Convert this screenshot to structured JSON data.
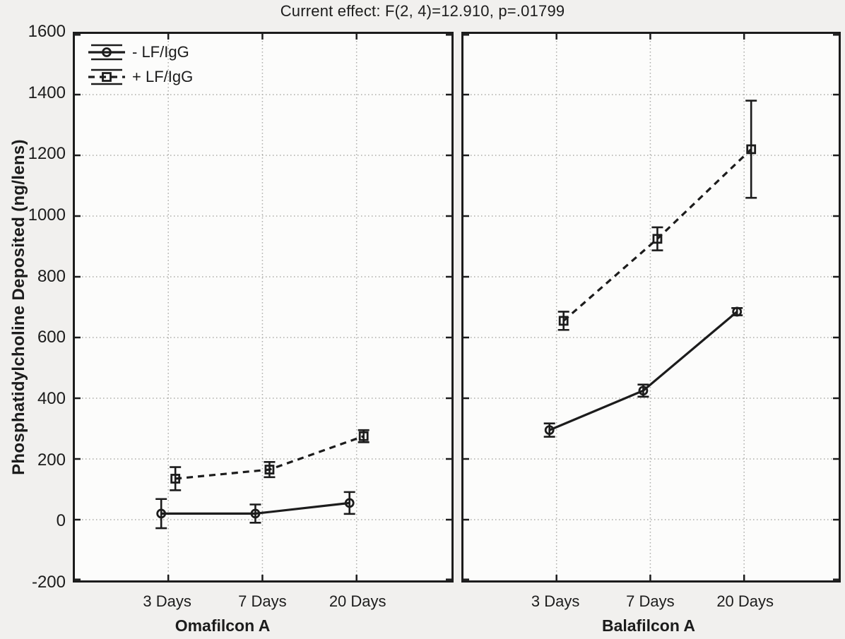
{
  "title": "Current effect: F(2, 4)=12.910, p=.01799",
  "y_axis": {
    "label": "Phosphatidylcholine Deposited (ng/lens)",
    "ticks": [
      1600,
      1400,
      1200,
      1000,
      800,
      600,
      400,
      200,
      0,
      -200
    ]
  },
  "legend": {
    "entries": [
      {
        "label": "- LF/IgG",
        "marker": "circle",
        "line": "solid"
      },
      {
        "label": "+ LF/IgG",
        "marker": "square",
        "line": "dashed"
      }
    ]
  },
  "chart_data": {
    "type": "line",
    "categories": [
      "3 Days",
      "7 Days",
      "20 Days"
    ],
    "ylim": [
      -200,
      1600
    ],
    "ytick_step": 200,
    "grid": "dotted",
    "legend_position": "top-left-of-first-panel",
    "xlabel": "",
    "ylabel": "Phosphatidylcholine Deposited (ng/lens)",
    "panels": [
      {
        "label": "Omafilcon A",
        "series": [
          {
            "name": "- LF/IgG",
            "marker": "circle",
            "line": "solid",
            "values": [
              20,
              20,
              55
            ],
            "errors": [
              48,
              30,
              36
            ]
          },
          {
            "name": "+ LF/IgG",
            "marker": "square",
            "line": "dashed",
            "values": [
              135,
              165,
              275
            ],
            "errors": [
              38,
              25,
              20
            ]
          }
        ]
      },
      {
        "label": "Balafilcon A",
        "series": [
          {
            "name": "- LF/IgG",
            "marker": "circle",
            "line": "solid",
            "values": [
              295,
              425,
              685
            ],
            "errors": [
              22,
              20,
              12
            ]
          },
          {
            "name": "+ LF/IgG",
            "marker": "square",
            "line": "dashed",
            "values": [
              655,
              925,
              1220
            ],
            "errors": [
              30,
              38,
              160
            ]
          }
        ]
      }
    ]
  },
  "colors": {
    "ink": "#1c1c1c",
    "grid": "#ababa8",
    "background": "#f1f0ee",
    "plot_background": "#fcfcfb"
  }
}
